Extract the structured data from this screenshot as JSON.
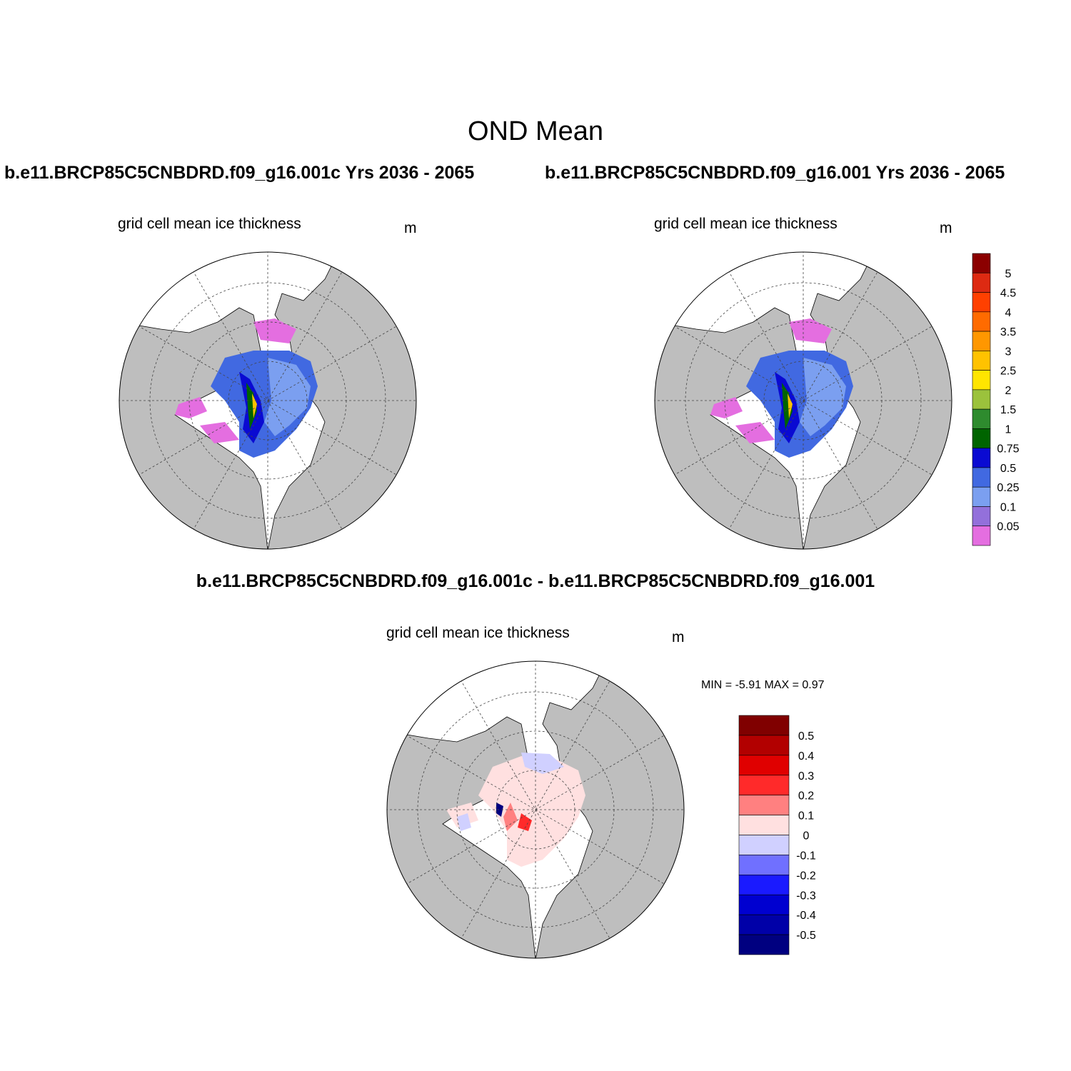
{
  "figure": {
    "title": "OND Mean",
    "left_case": "b.e11.BRCP85C5CNBDRD.f09_g16.001c  Yrs 2036 - 2065",
    "right_case": "b.e11.BRCP85C5CNBDRD.f09_g16.001  Yrs 2036 - 2065",
    "diff_title": "b.e11.BRCP85C5CNBDRD.f09_g16.001c - b.e11.BRCP85C5CNBDRD.f09_g16.001"
  },
  "panels": {
    "left": {
      "label": "grid cell mean ice thickness",
      "unit": "m"
    },
    "right": {
      "label": "grid cell mean ice thickness",
      "unit": "m"
    },
    "diff": {
      "label": "grid cell mean ice thickness",
      "unit": "m",
      "minmax": "MIN =  -5.91 MAX =   0.97"
    }
  },
  "colorbar_thickness": {
    "ticks": [
      "5",
      "4.5",
      "4",
      "3.5",
      "3",
      "2.5",
      "2",
      "1.5",
      "1",
      "0.75",
      "0.5",
      "0.25",
      "0.1",
      "0.05"
    ],
    "colors": [
      "#8b0000",
      "#dd2a12",
      "#ff4000",
      "#ff6b00",
      "#ff9700",
      "#ffc200",
      "#ffe500",
      "#9bc23c",
      "#2e8b2e",
      "#006400",
      "#0a0ad2",
      "#4169e1",
      "#7b9ff0",
      "#9370db",
      "#e46ee0"
    ]
  },
  "colorbar_diff": {
    "ticks": [
      "0.5",
      "0.4",
      "0.3",
      "0.2",
      "0.1",
      "0",
      "-0.1",
      "-0.2",
      "-0.3",
      "-0.4",
      "-0.5"
    ],
    "colors": [
      "#800000",
      "#b20000",
      "#e00000",
      "#ff2a2a",
      "#ff8080",
      "#ffe0e0",
      "#d0d0ff",
      "#7070ff",
      "#1a1aff",
      "#0000d0",
      "#0000a8",
      "#000080"
    ]
  }
}
